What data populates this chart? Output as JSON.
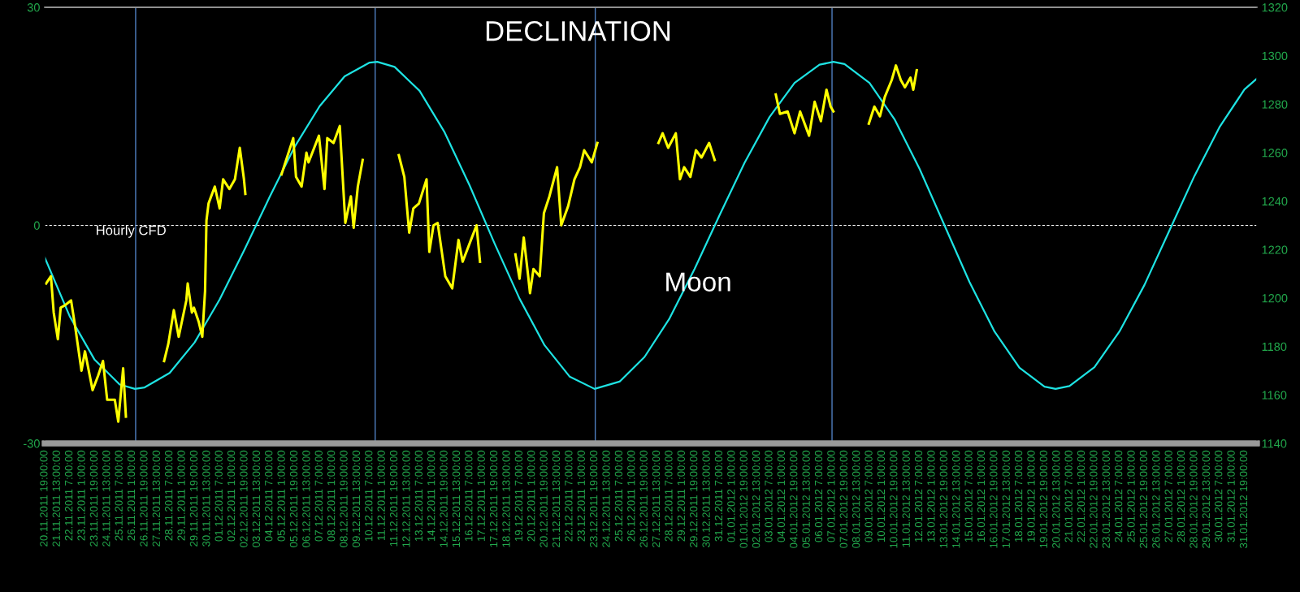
{
  "chart_data": {
    "type": "line",
    "title": "DECLINATION",
    "xlim": [
      "2011-11-20T19:00",
      "2012-02-01T13:00"
    ],
    "xticks": [
      {
        "value": "2011-11-20T19:00",
        "label": "20.11.2011 19:00:00"
      },
      {
        "value": "2011-11-21T13:00",
        "label": "21.11.2011 13:00:00"
      },
      {
        "value": "2011-11-22T07:00",
        "label": "22.11.2011 7:00:00"
      },
      {
        "value": "2011-11-23T01:00",
        "label": "23.11.2011 1:00:00"
      },
      {
        "value": "2011-11-23T19:00",
        "label": "23.11.2011 19:00:00"
      },
      {
        "value": "2011-11-24T13:00",
        "label": "24.11.2011 13:00:00"
      },
      {
        "value": "2011-11-25T07:00",
        "label": "25.11.2011 7:00:00"
      },
      {
        "value": "2011-11-26T01:00",
        "label": "26.11.2011 1:00:00"
      },
      {
        "value": "2011-11-26T19:00",
        "label": "26.11.2011 19:00:00"
      },
      {
        "value": "2011-11-27T13:00",
        "label": "27.11.2011 13:00:00"
      },
      {
        "value": "2011-11-28T07:00",
        "label": "28.11.2011 7:00:00"
      },
      {
        "value": "2011-11-29T01:00",
        "label": "29.11.2011 1:00:00"
      },
      {
        "value": "2011-11-29T19:00",
        "label": "29.11.2011 19:00:00"
      },
      {
        "value": "2011-11-30T13:00",
        "label": "30.11.2011 13:00:00"
      },
      {
        "value": "2011-12-01T07:00",
        "label": "01.12.2011 7:00:00"
      },
      {
        "value": "2011-12-02T01:00",
        "label": "02.12.2011 1:00:00"
      },
      {
        "value": "2011-12-02T19:00",
        "label": "02.12.2011 19:00:00"
      },
      {
        "value": "2011-12-03T13:00",
        "label": "03.12.2011 13:00:00"
      },
      {
        "value": "2011-12-04T07:00",
        "label": "04.12.2011 7:00:00"
      },
      {
        "value": "2011-12-05T01:00",
        "label": "05.12.2011 1:00:00"
      },
      {
        "value": "2011-12-05T19:00",
        "label": "05.12.2011 19:00:00"
      },
      {
        "value": "2011-12-06T13:00",
        "label": "06.12.2011 13:00:00"
      },
      {
        "value": "2011-12-07T07:00",
        "label": "07.12.2011 7:00:00"
      },
      {
        "value": "2011-12-08T01:00",
        "label": "08.12.2011 1:00:00"
      },
      {
        "value": "2011-12-08T19:00",
        "label": "08.12.2011 19:00:00"
      },
      {
        "value": "2011-12-09T13:00",
        "label": "09.12.2011 13:00:00"
      },
      {
        "value": "2011-12-10T07:00",
        "label": "10.12.2011 7:00:00"
      },
      {
        "value": "2011-12-11T01:00",
        "label": "11.12.2011 1:00:00"
      },
      {
        "value": "2011-12-11T19:00",
        "label": "11.12.2011 19:00:00"
      },
      {
        "value": "2011-12-12T13:00",
        "label": "12.12.2011 13:00:00"
      },
      {
        "value": "2011-12-13T07:00",
        "label": "13.12.2011 7:00:00"
      },
      {
        "value": "2011-12-14T01:00",
        "label": "14.12.2011 1:00:00"
      },
      {
        "value": "2011-12-14T19:00",
        "label": "14.12.2011 19:00:00"
      },
      {
        "value": "2011-12-15T13:00",
        "label": "15.12.2011 13:00:00"
      },
      {
        "value": "2011-12-16T07:00",
        "label": "16.12.2011 7:00:00"
      },
      {
        "value": "2011-12-17T01:00",
        "label": "17.12.2011 1:00:00"
      },
      {
        "value": "2011-12-17T19:00",
        "label": "17.12.2011 19:00:00"
      },
      {
        "value": "2011-12-18T13:00",
        "label": "18.12.2011 13:00:00"
      },
      {
        "value": "2011-12-19T07:00",
        "label": "19.12.2011 7:00:00"
      },
      {
        "value": "2011-12-20T01:00",
        "label": "20.12.2011 1:00:00"
      },
      {
        "value": "2011-12-20T19:00",
        "label": "20.12.2011 19:00:00"
      },
      {
        "value": "2011-12-21T13:00",
        "label": "21.12.2011 13:00:00"
      },
      {
        "value": "2011-12-22T07:00",
        "label": "22.12.2011 7:00:00"
      },
      {
        "value": "2011-12-23T01:00",
        "label": "23.12.2011 1:00:00"
      },
      {
        "value": "2011-12-23T19:00",
        "label": "23.12.2011 19:00:00"
      },
      {
        "value": "2011-12-24T13:00",
        "label": "24.12.2011 13:00:00"
      },
      {
        "value": "2011-12-25T07:00",
        "label": "25.12.2011 7:00:00"
      },
      {
        "value": "2011-12-26T01:00",
        "label": "26.12.2011 1:00:00"
      },
      {
        "value": "2011-12-26T19:00",
        "label": "26.12.2011 19:00:00"
      },
      {
        "value": "2011-12-27T13:00",
        "label": "27.12.2011 13:00:00"
      },
      {
        "value": "2011-12-28T07:00",
        "label": "28.12.2011 7:00:00"
      },
      {
        "value": "2011-12-29T01:00",
        "label": "29.12.2011 1:00:00"
      },
      {
        "value": "2011-12-29T19:00",
        "label": "29.12.2011 19:00:00"
      },
      {
        "value": "2011-12-30T13:00",
        "label": "30.12.2011 13:00:00"
      },
      {
        "value": "2011-12-31T07:00",
        "label": "31.12.2011 7:00:00"
      },
      {
        "value": "2012-01-01T01:00",
        "label": "01.01.2012 1:00:00"
      },
      {
        "value": "2012-01-01T19:00",
        "label": "01.01.2012 19:00:00"
      },
      {
        "value": "2012-01-02T13:00",
        "label": "02.01.2012 13:00:00"
      },
      {
        "value": "2012-01-03T07:00",
        "label": "03.01.2012 7:00:00"
      },
      {
        "value": "2012-01-04T01:00",
        "label": "04.01.2012 1:00:00"
      },
      {
        "value": "2012-01-04T19:00",
        "label": "04.01.2012 19:00:00"
      },
      {
        "value": "2012-01-05T13:00",
        "label": "05.01.2012 13:00:00"
      },
      {
        "value": "2012-01-06T07:00",
        "label": "06.01.2012 7:00:00"
      },
      {
        "value": "2012-01-07T01:00",
        "label": "07.01.2012 1:00:00"
      },
      {
        "value": "2012-01-07T19:00",
        "label": "07.01.2012 19:00:00"
      },
      {
        "value": "2012-01-08T13:00",
        "label": "08.01.2012 13:00:00"
      },
      {
        "value": "2012-01-09T07:00",
        "label": "09.01.2012 7:00:00"
      },
      {
        "value": "2012-01-10T01:00",
        "label": "10.01.2012 1:00:00"
      },
      {
        "value": "2012-01-10T19:00",
        "label": "10.01.2012 19:00:00"
      },
      {
        "value": "2012-01-11T13:00",
        "label": "11.01.2012 13:00:00"
      },
      {
        "value": "2012-01-12T07:00",
        "label": "12.01.2012 7:00:00"
      },
      {
        "value": "2012-01-13T01:00",
        "label": "13.01.2012 1:00:00"
      },
      {
        "value": "2012-01-13T19:00",
        "label": "13.01.2012 19:00:00"
      },
      {
        "value": "2012-01-14T13:00",
        "label": "14.01.2012 13:00:00"
      },
      {
        "value": "2012-01-15T07:00",
        "label": "15.01.2012 7:00:00"
      },
      {
        "value": "2012-01-16T01:00",
        "label": "16.01.2012 1:00:00"
      },
      {
        "value": "2012-01-16T19:00",
        "label": "16.01.2012 19:00:00"
      },
      {
        "value": "2012-01-17T13:00",
        "label": "17.01.2012 13:00:00"
      },
      {
        "value": "2012-01-18T07:00",
        "label": "18.01.2012 7:00:00"
      },
      {
        "value": "2012-01-19T01:00",
        "label": "19.01.2012 1:00:00"
      },
      {
        "value": "2012-01-19T19:00",
        "label": "19.01.2012 19:00:00"
      },
      {
        "value": "2012-01-20T13:00",
        "label": "20.01.2012 13:00:00"
      },
      {
        "value": "2012-01-21T07:00",
        "label": "21.01.2012 7:00:00"
      },
      {
        "value": "2012-01-22T01:00",
        "label": "22.01.2012 1:00:00"
      },
      {
        "value": "2012-01-22T19:00",
        "label": "22.01.2012 19:00:00"
      },
      {
        "value": "2012-01-23T13:00",
        "label": "23.01.2012 13:00:00"
      },
      {
        "value": "2012-01-24T07:00",
        "label": "24.01.2012 7:00:00"
      },
      {
        "value": "2012-01-25T01:00",
        "label": "25.01.2012 1:00:00"
      },
      {
        "value": "2012-01-25T19:00",
        "label": "25.01.2012 19:00:00"
      },
      {
        "value": "2012-01-26T13:00",
        "label": "26.01.2012 13:00:00"
      },
      {
        "value": "2012-01-27T07:00",
        "label": "27.01.2012 7:00:00"
      },
      {
        "value": "2012-01-28T01:00",
        "label": "28.01.2012 1:00:00"
      },
      {
        "value": "2012-01-28T19:00",
        "label": "28.01.2012 19:00:00"
      },
      {
        "value": "2012-01-29T13:00",
        "label": "29.01.2012 13:00:00"
      },
      {
        "value": "2012-01-30T07:00",
        "label": "30.01.2012 7:00:00"
      },
      {
        "value": "2012-01-31T01:00",
        "label": "31.01.2012 1:00:00"
      },
      {
        "value": "2012-01-31T19:00",
        "label": "31.01.2012 19:00:00"
      }
    ],
    "ylim": [
      -30,
      30
    ],
    "yticks": [
      -30,
      0,
      30
    ],
    "y2lim": [
      1140,
      1320
    ],
    "y2ticks": [
      1140,
      1160,
      1180,
      1200,
      1220,
      1240,
      1260,
      1280,
      1300,
      1320
    ],
    "grid": false,
    "legend": false,
    "marker": "none",
    "line_style": "solid",
    "series": [
      {
        "name": "Moon",
        "color": "#1ee3e3",
        "axis": "y",
        "x": [
          "2011-11-20T19:00",
          "2011-11-22T07:00",
          "2011-11-23T19:00",
          "2011-11-25T07:00",
          "2011-11-26T05:00",
          "2011-11-26T19:00",
          "2011-11-28T07:00",
          "2011-11-29T19:00",
          "2011-12-01T07:00",
          "2011-12-02T19:00",
          "2011-12-04T07:00",
          "2011-12-05T19:00",
          "2011-12-07T07:00",
          "2011-12-08T19:00",
          "2011-12-10T07:00",
          "2011-12-10T18:00",
          "2011-12-11T19:00",
          "2011-12-13T07:00",
          "2011-12-14T19:00",
          "2011-12-16T07:00",
          "2011-12-17T19:00",
          "2011-12-19T07:00",
          "2011-12-20T19:00",
          "2011-12-22T07:00",
          "2011-12-23T19:00",
          "2011-12-25T07:00",
          "2011-12-26T19:00",
          "2011-12-28T07:00",
          "2011-12-29T19:00",
          "2011-12-31T07:00",
          "2012-01-01T19:00",
          "2012-01-03T07:00",
          "2012-01-04T19:00",
          "2012-01-06T07:00",
          "2012-01-07T03:00",
          "2012-01-07T19:00",
          "2012-01-09T07:00",
          "2012-01-10T19:00",
          "2012-01-12T07:00",
          "2012-01-13T19:00",
          "2012-01-15T07:00",
          "2012-01-16T19:00",
          "2012-01-18T07:00",
          "2012-01-19T19:00",
          "2012-01-20T11:00",
          "2012-01-21T07:00",
          "2012-01-22T19:00",
          "2012-01-24T07:00",
          "2012-01-25T19:00",
          "2012-01-27T07:00",
          "2012-01-28T19:00",
          "2012-01-30T07:00",
          "2012-01-31T19:00",
          "2012-02-01T13:00"
        ],
        "values": [
          -4.4,
          -12.5,
          -18.5,
          -21.9,
          -22.5,
          -22.3,
          -20.3,
          -16.1,
          -10.2,
          -3.3,
          3.9,
          10.8,
          16.4,
          20.5,
          22.4,
          22.5,
          21.8,
          18.5,
          12.8,
          5.5,
          -2.5,
          -10.1,
          -16.5,
          -20.8,
          -22.5,
          -21.5,
          -18.1,
          -12.8,
          -6.0,
          1.4,
          8.6,
          14.9,
          19.6,
          22.1,
          22.5,
          22.2,
          19.6,
          14.6,
          7.8,
          0,
          -7.8,
          -14.6,
          -19.6,
          -22.2,
          -22.5,
          -22.1,
          -19.5,
          -14.6,
          -8.2,
          -0.7,
          6.8,
          13.5,
          18.7,
          20.2
        ]
      },
      {
        "name": "Hourly CFD",
        "color": "#ffff00",
        "axis": "y2",
        "x": [
          "2011-11-20T21:00",
          "2011-11-21T04:00",
          "2011-11-21T08:00",
          "2011-11-21T14:00",
          "2011-11-21T18:00",
          "2011-11-22T00:00",
          "2011-11-22T09:00",
          "2011-11-22T15:00",
          "2011-11-22T18:00",
          "2011-11-23T00:00",
          "2011-11-23T05:00",
          "2011-11-23T16:00",
          "2011-11-24T00:00",
          "2011-11-24T07:00",
          "2011-11-24T13:00",
          "2011-11-25T00:00",
          "2011-11-25T05:00",
          "2011-11-25T12:00",
          "2011-11-25T16:00",
          "2011-11-26T12:00",
          "2011-11-27T23:00",
          "2011-11-28T05:00",
          "2011-11-28T13:00",
          "2011-11-28T20:00",
          "2011-11-29T07:00",
          "2011-11-29T09:00",
          "2011-11-29T15:00",
          "2011-11-29T18:00",
          "2011-11-30T01:00",
          "2011-11-30T06:00",
          "2011-11-30T10:00",
          "2011-11-30T12:00",
          "2011-11-30T15:00",
          "2011-12-01T00:00",
          "2011-12-01T07:00",
          "2011-12-01T12:00",
          "2011-12-01T21:00",
          "2011-12-02T05:00",
          "2011-12-02T12:00",
          "2011-12-02T18:00",
          "2011-12-02T20:00",
          "2011-12-03T18:00",
          "2011-12-05T00:00",
          "2011-12-05T17:00",
          "2011-12-05T21:00",
          "2011-12-06T05:00",
          "2011-12-06T12:00",
          "2011-12-06T15:00",
          "2011-12-07T06:00",
          "2011-12-07T14:00",
          "2011-12-07T18:00",
          "2011-12-08T03:00",
          "2011-12-08T12:00",
          "2011-12-08T20:00",
          "2011-12-09T04:00",
          "2011-12-09T08:00",
          "2011-12-09T14:00",
          "2011-12-09T21:00",
          "2011-12-10T18:00",
          "2011-12-12T01:00",
          "2011-12-12T09:00",
          "2011-12-12T16:00",
          "2011-12-12T22:00",
          "2011-12-13T06:00",
          "2011-12-13T17:00",
          "2011-12-13T21:00",
          "2011-12-14T03:00",
          "2011-12-14T09:00",
          "2011-12-14T20:00",
          "2011-12-15T06:00",
          "2011-12-15T15:00",
          "2011-12-15T21:00",
          "2011-12-16T09:00",
          "2011-12-16T17:00",
          "2011-12-16T22:00",
          "2011-12-17T18:00",
          "2011-12-19T01:00",
          "2011-12-19T07:00",
          "2011-12-19T13:00",
          "2011-12-19T19:00",
          "2011-12-19T22:00",
          "2011-12-20T03:00",
          "2011-12-20T12:00",
          "2011-12-20T18:00",
          "2011-12-21T02:00",
          "2011-12-21T13:00",
          "2011-12-21T19:00",
          "2011-12-22T05:00",
          "2011-12-22T14:00",
          "2011-12-22T22:00",
          "2011-12-23T04:00",
          "2011-12-23T15:00",
          "2011-12-23T23:00",
          "2011-12-25T00:00",
          "2011-12-27T15:00",
          "2011-12-27T21:00",
          "2011-12-28T05:00",
          "2011-12-28T16:00",
          "2011-12-28T22:00",
          "2011-12-29T04:00",
          "2011-12-29T13:00",
          "2011-12-29T21:00",
          "2011-12-30T05:00",
          "2011-12-30T16:00",
          "2011-12-31T00:00",
          "2012-01-01T12:00",
          "2012-01-03T16:00",
          "2012-01-03T22:00",
          "2012-01-04T09:00",
          "2012-01-04T19:00",
          "2012-01-05T03:00",
          "2012-01-05T16:00",
          "2012-01-06T00:00",
          "2012-01-06T09:00",
          "2012-01-06T17:00",
          "2012-01-06T23:00",
          "2012-01-07T03:00",
          "2012-01-08T00:00",
          "2012-01-09T06:00",
          "2012-01-09T14:00",
          "2012-01-09T22:00",
          "2012-01-10T05:00",
          "2012-01-10T15:00",
          "2012-01-10T21:00",
          "2012-01-11T04:00",
          "2012-01-11T10:00",
          "2012-01-11T18:00",
          "2012-01-11T22:00",
          "2012-01-12T03:00"
        ],
        "values": [
          1206,
          1209,
          1194,
          1183,
          1196,
          1197,
          1199,
          1188,
          1182,
          1170,
          1178,
          1162,
          1168,
          1174,
          1158,
          1158,
          1149,
          1171,
          1151,
          null,
          1174,
          1181,
          1195,
          1184,
          1199,
          1206,
          1194,
          1196,
          1190,
          1184,
          1203,
          1232,
          1239,
          1246,
          1237,
          1249,
          1245,
          1249,
          1262,
          1249,
          1243,
          null,
          1251,
          1266,
          1250,
          1246,
          1260,
          1256,
          1267,
          1245,
          1266,
          1264,
          1271,
          1231,
          1242,
          1229,
          1246,
          1257,
          null,
          1259,
          1250,
          1227,
          1237,
          1239,
          1249,
          1219,
          1230,
          1231,
          1209,
          1204,
          1224,
          1215,
          1224,
          1230,
          1215,
          null,
          1218,
          1208,
          1225,
          1210,
          1202,
          1212,
          1209,
          1235,
          1242,
          1254,
          1230,
          1238,
          1249,
          1254,
          1261,
          1256,
          1264,
          null,
          1264,
          1268,
          1262,
          1268,
          1249,
          1254,
          1250,
          1261,
          1258,
          1264,
          1257,
          null,
          1284,
          1276,
          1277,
          1268,
          1277,
          1267,
          1281,
          1273,
          1286,
          1279,
          1277,
          null,
          1272,
          1279,
          1275,
          1283,
          1290,
          1296,
          1290,
          1287,
          1291,
          1286,
          1294
        ]
      }
    ],
    "ref_lines": [
      {
        "axis": "y",
        "value": 0,
        "color": "#ffffff",
        "line_style": "dashed"
      },
      {
        "axis": "x",
        "value": "2011-11-26T06:00",
        "color": "#4f7fc0",
        "line_style": "solid"
      },
      {
        "axis": "x",
        "value": "2011-12-10T15:00",
        "color": "#4f7fc0",
        "line_style": "solid"
      },
      {
        "axis": "x",
        "value": "2011-12-23T20:00",
        "color": "#4f7fc0",
        "line_style": "solid"
      },
      {
        "axis": "x",
        "value": "2012-01-07T01:00",
        "color": "#4f7fc0",
        "line_style": "solid"
      }
    ]
  }
}
